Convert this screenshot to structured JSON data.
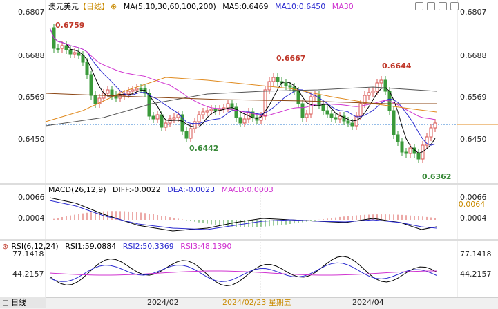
{
  "header": {
    "symbol": "澳元美元",
    "period": "【日线】",
    "ma_legend_label": "MA(5,10,30,60,100,200)",
    "ma5": "MA5:0.6469",
    "ma10": "MA10:0.6450",
    "ma30": "MA30"
  },
  "price_axis": {
    "labels": [
      "0.6807",
      "0.6688",
      "0.6569",
      "0.6450"
    ]
  },
  "annotations": {
    "high1": "0.6759",
    "high2": "0.6667",
    "high3": "0.6644",
    "low1": "0.6442",
    "low2": "0.6362"
  },
  "macd": {
    "legend": "MACD(26,12,9)",
    "diff": "DIFF:-0.0022",
    "dea": "DEA:-0.0023",
    "macd": "MACD:0.0003",
    "axis_left": [
      "0.0066",
      "0.0004"
    ],
    "axis_right": [
      "0.0066",
      "0.0064",
      "0.0004"
    ]
  },
  "rsi": {
    "legend": "RSI(6,12,24)",
    "rsi1": "RSI1:59.0884",
    "rsi2": "RSI2:50.3369",
    "rsi3": "RSI3:48.1390",
    "axis_left": [
      "77.1418",
      "44.2157"
    ],
    "axis_right": [
      "77.1418",
      "44.2157"
    ]
  },
  "bottom": {
    "period_tab": "日线",
    "date_labels": [
      "2024/02",
      "2024/04"
    ],
    "crosshair_date": "2024/02/23 星期五"
  },
  "colors": {
    "up": "#d9534f",
    "down": "#3a9a3a",
    "ma5": "#000000",
    "ma10": "#2b2bd0",
    "ma30": "#d033d0",
    "ma60": "#e08a1e",
    "ma100": "#555555",
    "ma200": "#8b4513",
    "annot_high": "#c0392b",
    "annot_low": "#3a8a3a"
  }
}
